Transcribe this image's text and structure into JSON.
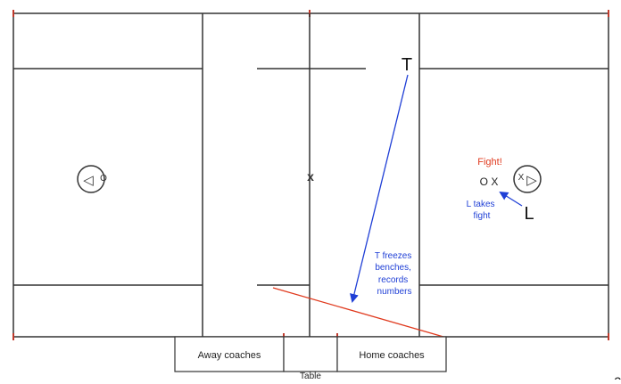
{
  "field": {
    "line_color": "#333333",
    "tick_color": "#c0392b",
    "x_mark": "x"
  },
  "goals": {
    "left_arrow": "◁",
    "left_player": "O",
    "right_player": "X",
    "right_arrow": "▷"
  },
  "officials": {
    "trail": "T",
    "lead": "L"
  },
  "annotations": {
    "fight_label": "Fight!",
    "fight_players": "O X",
    "lead_note_lines": [
      "L takes",
      "fight"
    ],
    "trail_note_lines": [
      "T freezes",
      "benches,",
      "records",
      "numbers"
    ],
    "note_color": "#1f3fd6",
    "alert_color": "#e03a1e"
  },
  "sideline": {
    "away_coaches": "Away coaches",
    "home_coaches": "Home coaches",
    "table": "Table"
  },
  "corner_fragment": "c"
}
